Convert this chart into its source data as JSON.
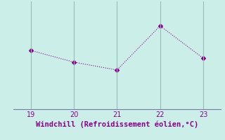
{
  "x": [
    19,
    20,
    21,
    22,
    23
  ],
  "y": [
    -2.0,
    -3.2,
    -4.0,
    0.5,
    -2.8
  ],
  "line_color": "#880088",
  "marker": "D",
  "marker_size": 3,
  "background_color": "#cceee8",
  "xlabel": "Windchill (Refroidissement éolien,°C)",
  "xlabel_color": "#880088",
  "xlabel_fontsize": 7.5,
  "xtick_color": "#880088",
  "grid_color": "#99bbbb",
  "xlim": [
    18.6,
    23.4
  ],
  "ylim": [
    -8.0,
    3.0
  ],
  "xticks": [
    19,
    20,
    21,
    22,
    23
  ],
  "spine_color": "#7777aa",
  "tick_label_fontsize": 7
}
